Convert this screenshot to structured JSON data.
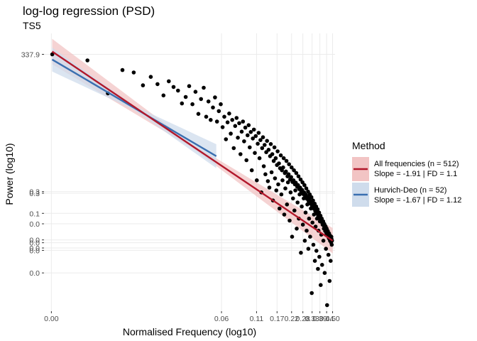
{
  "chart_data": {
    "type": "scatter",
    "title": "log-log regression (PSD)",
    "subtitle": "TS5",
    "xlabel": "Normalised Frequency (log10)",
    "ylabel": "Power (log10)",
    "x_tick_labels": [
      "0.00",
      "0.06",
      "0.11",
      "0.17",
      "0.22",
      "0.28",
      "0.33",
      "0.39",
      "0.44",
      "0.50"
    ],
    "y_tick_labels": [
      "337.9",
      "0.3",
      "0.3",
      "0.1",
      "0.0",
      "0.0",
      "0.0",
      "0.0",
      "0.0",
      "0.0"
    ],
    "xlim": [
      0.0,
      0.5
    ],
    "grid": true,
    "legend": {
      "title": "Method",
      "placement": "right",
      "entries": [
        {
          "line1": "All frequencies (n = 512)",
          "line2": "Slope = -1.91 | FD = 1.1",
          "color": "#b2182b",
          "fill": "#f2c4c4"
        },
        {
          "line1": "Hurvich-Deo (n = 52)",
          "line2": "Slope = -1.67 | FD = 1.12",
          "color": "#3a6fb0",
          "fill": "#cfdcec"
        }
      ]
    },
    "lines": [
      {
        "name": "All frequencies (n = 512)",
        "from": [
          -2.71,
          2.6
        ],
        "to": [
          -0.3,
          -2.1
        ],
        "color": "#b2182b"
      },
      {
        "name": "Hurvich-Deo (n = 52)",
        "from": [
          -2.71,
          2.4
        ],
        "to": [
          -1.3,
          0.0
        ],
        "color": "#3a6fb0"
      }
    ],
    "points": [
      [
        -2.709,
        2.53
      ],
      [
        -2.407,
        2.38
      ],
      [
        -2.231,
        1.56
      ],
      [
        -2.106,
        2.14
      ],
      [
        -2.009,
        2.08
      ],
      [
        -1.93,
        1.76
      ],
      [
        -1.863,
        1.97
      ],
      [
        -1.805,
        1.79
      ],
      [
        -1.754,
        1.51
      ],
      [
        -1.708,
        1.86
      ],
      [
        -1.667,
        1.72
      ],
      [
        -1.629,
        1.63
      ],
      [
        -1.595,
        1.31
      ],
      [
        -1.563,
        1.47
      ],
      [
        -1.533,
        1.74
      ],
      [
        -1.505,
        1.29
      ],
      [
        -1.479,
        1.6
      ],
      [
        -1.454,
        1.05
      ],
      [
        -1.431,
        1.42
      ],
      [
        -1.408,
        1.7
      ],
      [
        -1.387,
        0.98
      ],
      [
        -1.367,
        1.36
      ],
      [
        -1.348,
        0.9
      ],
      [
        -1.329,
        1.21
      ],
      [
        -1.311,
        1.46
      ],
      [
        -1.294,
        0.86
      ],
      [
        -1.278,
        1.12
      ],
      [
        -1.262,
        1.29
      ],
      [
        -1.246,
        0.72
      ],
      [
        -1.231,
        0.98
      ],
      [
        -1.217,
        0.42
      ],
      [
        -1.203,
        0.84
      ],
      [
        -1.189,
        1.06
      ],
      [
        -1.176,
        0.56
      ],
      [
        -1.163,
        0.9
      ],
      [
        -1.15,
        0.2
      ],
      [
        -1.138,
        0.75
      ],
      [
        -1.126,
        0.95
      ],
      [
        -1.115,
        0.46
      ],
      [
        -1.103,
        0.82
      ],
      [
        -1.092,
        0.05
      ],
      [
        -1.082,
        0.61
      ],
      [
        -1.071,
        0.86
      ],
      [
        -1.061,
        0.37
      ],
      [
        -1.051,
        0.71
      ],
      [
        -1.041,
        -0.1
      ],
      [
        -1.031,
        0.52
      ],
      [
        -1.022,
        0.77
      ],
      [
        -1.013,
        0.22
      ],
      [
        -1.004,
        0.6
      ],
      [
        -0.995,
        -0.35
      ],
      [
        -0.986,
        0.44
      ],
      [
        -0.977,
        0.66
      ],
      [
        -0.969,
        0.08
      ],
      [
        -0.961,
        0.5
      ],
      [
        -0.952,
        -0.6
      ],
      [
        -0.944,
        0.31
      ],
      [
        -0.936,
        0.58
      ],
      [
        -0.929,
        -0.05
      ],
      [
        -0.921,
        0.4
      ],
      [
        -0.913,
        -0.9
      ],
      [
        -0.906,
        0.2
      ],
      [
        -0.899,
        0.47
      ],
      [
        -0.892,
        -0.25
      ],
      [
        -0.885,
        0.28
      ],
      [
        -0.878,
        -0.45
      ],
      [
        -0.871,
        0.1
      ],
      [
        -0.864,
        0.38
      ],
      [
        -0.857,
        -0.62
      ],
      [
        -0.851,
        0.16
      ],
      [
        -0.844,
        -0.78
      ],
      [
        -0.838,
        0.0
      ],
      [
        -0.832,
        0.3
      ],
      [
        -0.825,
        -0.4
      ],
      [
        -0.819,
        0.05
      ],
      [
        -0.813,
        -1.1
      ],
      [
        -0.807,
        -0.12
      ],
      [
        -0.801,
        0.22
      ],
      [
        -0.796,
        -0.55
      ],
      [
        -0.79,
        -0.05
      ],
      [
        -0.784,
        -0.85
      ],
      [
        -0.779,
        -0.22
      ],
      [
        -0.773,
        0.12
      ],
      [
        -0.768,
        -0.7
      ],
      [
        -0.762,
        -0.18
      ],
      [
        -0.757,
        -1.3
      ],
      [
        -0.752,
        -0.3
      ],
      [
        -0.746,
        0.02
      ],
      [
        -0.741,
        -0.95
      ],
      [
        -0.736,
        -0.35
      ],
      [
        -0.731,
        -0.6
      ],
      [
        -0.726,
        -0.28
      ],
      [
        -0.721,
        -0.05
      ],
      [
        -0.716,
        -1.45
      ],
      [
        -0.711,
        -0.42
      ],
      [
        -0.707,
        -0.8
      ],
      [
        -0.702,
        -0.38
      ],
      [
        -0.697,
        -0.12
      ],
      [
        -0.693,
        -1.2
      ],
      [
        -0.688,
        -0.5
      ],
      [
        -0.684,
        -0.65
      ],
      [
        -0.679,
        -0.45
      ],
      [
        -0.675,
        -0.2
      ],
      [
        -0.67,
        -1.6
      ],
      [
        -0.666,
        -0.58
      ],
      [
        -0.662,
        -0.9
      ],
      [
        -0.657,
        -0.52
      ],
      [
        -0.653,
        -0.28
      ],
      [
        -0.649,
        -2.0
      ],
      [
        -0.645,
        -0.64
      ],
      [
        -0.641,
        -1.05
      ],
      [
        -0.637,
        -0.6
      ],
      [
        -0.633,
        -0.35
      ],
      [
        -0.629,
        -1.35
      ],
      [
        -0.625,
        -0.7
      ],
      [
        -0.621,
        -0.85
      ],
      [
        -0.617,
        -0.66
      ],
      [
        -0.613,
        -0.42
      ],
      [
        -0.609,
        -1.8
      ],
      [
        -0.605,
        -0.76
      ],
      [
        -0.602,
        -1.15
      ],
      [
        -0.598,
        -0.72
      ],
      [
        -0.594,
        -0.5
      ],
      [
        -0.591,
        -1.55
      ],
      [
        -0.587,
        -0.82
      ],
      [
        -0.584,
        -0.95
      ],
      [
        -0.58,
        -0.78
      ],
      [
        -0.576,
        -0.58
      ],
      [
        -0.573,
        -2.4
      ],
      [
        -0.57,
        -0.88
      ],
      [
        -0.566,
        -1.25
      ],
      [
        -0.563,
        -0.84
      ],
      [
        -0.559,
        -0.65
      ],
      [
        -0.556,
        -1.7
      ],
      [
        -0.553,
        -0.94
      ],
      [
        -0.549,
        -1.05
      ],
      [
        -0.546,
        -0.9
      ],
      [
        -0.543,
        -0.72
      ],
      [
        -0.54,
        -2.1
      ],
      [
        -0.537,
        -1.0
      ],
      [
        -0.533,
        -1.4
      ],
      [
        -0.53,
        -0.96
      ],
      [
        -0.527,
        -0.8
      ],
      [
        -0.524,
        -1.85
      ],
      [
        -0.521,
        -1.06
      ],
      [
        -0.518,
        -1.2
      ],
      [
        -0.515,
        -1.02
      ],
      [
        -0.512,
        -0.88
      ],
      [
        -0.509,
        -2.3
      ],
      [
        -0.506,
        -1.12
      ],
      [
        -0.503,
        -1.55
      ],
      [
        -0.5,
        -1.08
      ],
      [
        -0.497,
        -0.95
      ],
      [
        -0.494,
        -2.0
      ],
      [
        -0.491,
        -1.18
      ],
      [
        -0.488,
        -1.3
      ],
      [
        -0.486,
        -1.14
      ],
      [
        -0.483,
        -1.02
      ],
      [
        -0.48,
        -3.4
      ],
      [
        -0.477,
        -1.24
      ],
      [
        -0.474,
        -1.65
      ],
      [
        -0.472,
        -1.2
      ],
      [
        -0.469,
        -1.1
      ],
      [
        -0.466,
        -2.2
      ],
      [
        -0.463,
        -1.3
      ],
      [
        -0.461,
        -1.45
      ],
      [
        -0.458,
        -1.26
      ],
      [
        -0.455,
        -1.18
      ],
      [
        -0.453,
        -2.6
      ],
      [
        -0.45,
        -1.36
      ],
      [
        -0.447,
        -1.75
      ],
      [
        -0.445,
        -1.32
      ],
      [
        -0.442,
        -1.25
      ],
      [
        -0.44,
        -2.35
      ],
      [
        -0.437,
        -1.42
      ],
      [
        -0.435,
        -1.55
      ],
      [
        -0.432,
        -1.38
      ],
      [
        -0.43,
        -1.32
      ],
      [
        -0.427,
        -2.8
      ],
      [
        -0.425,
        -1.48
      ],
      [
        -0.422,
        -1.85
      ],
      [
        -0.42,
        -1.44
      ],
      [
        -0.417,
        -1.4
      ],
      [
        -0.415,
        -2.5
      ],
      [
        -0.413,
        -1.54
      ],
      [
        -0.41,
        -1.62
      ],
      [
        -0.408,
        -1.5
      ],
      [
        -0.405,
        -1.48
      ],
      [
        -0.403,
        -3.2
      ],
      [
        -0.401,
        -1.6
      ],
      [
        -0.398,
        -1.95
      ],
      [
        -0.396,
        -1.56
      ],
      [
        -0.394,
        -1.55
      ],
      [
        -0.391,
        -2.7
      ],
      [
        -0.389,
        -1.66
      ],
      [
        -0.387,
        -1.7
      ],
      [
        -0.385,
        -1.62
      ],
      [
        -0.382,
        -1.62
      ],
      [
        -0.38,
        -2.1
      ],
      [
        -0.378,
        -1.72
      ],
      [
        -0.376,
        -1.8
      ],
      [
        -0.373,
        -1.68
      ],
      [
        -0.371,
        -1.7
      ],
      [
        -0.369,
        -2.9
      ],
      [
        -0.367,
        -1.78
      ],
      [
        -0.365,
        -1.86
      ],
      [
        -0.363,
        -1.74
      ],
      [
        -0.36,
        -1.76
      ],
      [
        -0.358,
        -2.3
      ],
      [
        -0.356,
        -1.84
      ],
      [
        -0.354,
        -1.92
      ],
      [
        -0.352,
        -1.8
      ],
      [
        -0.35,
        -1.84
      ],
      [
        -0.348,
        -3.7
      ],
      [
        -0.346,
        -1.9
      ],
      [
        -0.344,
        -1.98
      ],
      [
        -0.342,
        -1.86
      ],
      [
        -0.34,
        -1.9
      ],
      [
        -0.337,
        -2.45
      ],
      [
        -0.335,
        -1.96
      ],
      [
        -0.333,
        -2.04
      ],
      [
        -0.331,
        -1.92
      ],
      [
        -0.329,
        -1.96
      ],
      [
        -0.327,
        -3.1
      ],
      [
        -0.325,
        -2.02
      ],
      [
        -0.323,
        -2.1
      ],
      [
        -0.321,
        -1.98
      ],
      [
        -0.319,
        -2.02
      ],
      [
        -0.318,
        -2.6
      ],
      [
        -0.316,
        -2.06
      ],
      [
        -0.314,
        -2.14
      ],
      [
        -0.312,
        -2.0
      ],
      [
        -0.31,
        -2.06
      ],
      [
        -0.308,
        -2.2
      ],
      [
        -0.306,
        -2.1
      ]
    ]
  }
}
